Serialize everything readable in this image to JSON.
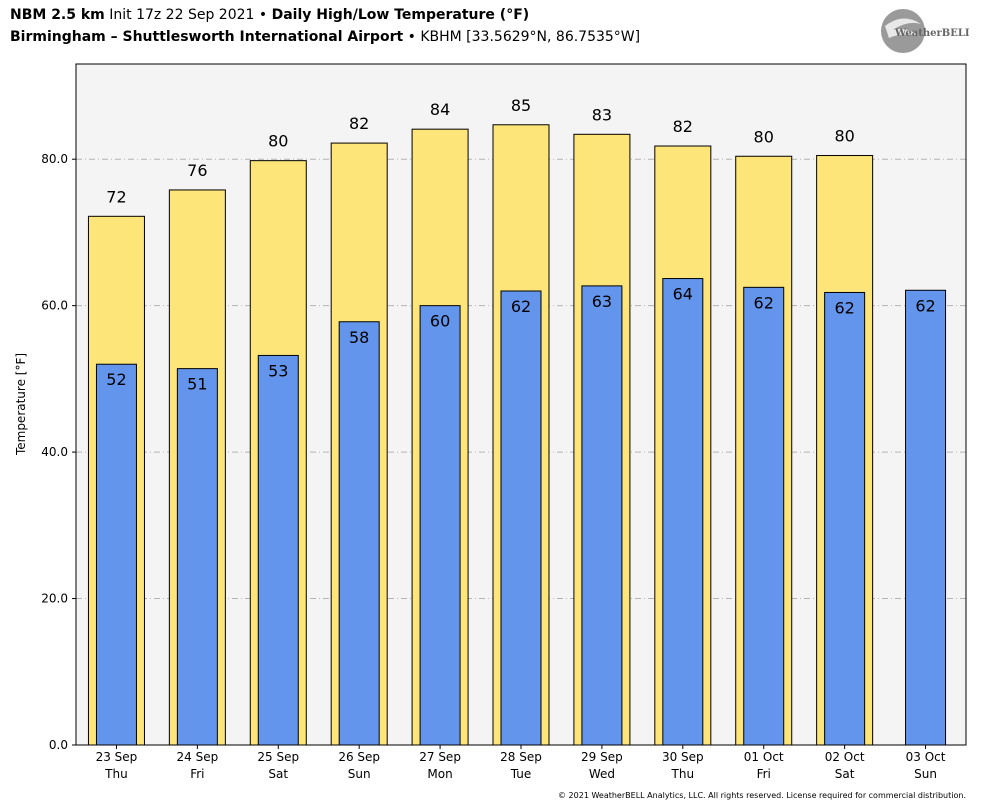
{
  "header": {
    "model": "NBM 2.5 km",
    "init": "Init 17z 22 Sep 2021",
    "bullet": "•",
    "product": "Daily High/Low Temperature (°F)",
    "station": "Birmingham – Shuttlesworth International Airport",
    "station_meta": "KBHM [33.5629°N, 86.7535°W]"
  },
  "logo": {
    "text": "WeatherBELL",
    "icon": "weatherbell-swirl-logo"
  },
  "footer": "© 2021 WeatherBELL Analytics, LLC. All rights reserved. License required for commercial distribution.",
  "colors": {
    "high": "#fee57a",
    "low": "#6495ed",
    "plot_bg": "#f4f4f4",
    "grid": "#b4b4b4"
  },
  "chart_data": {
    "type": "bar",
    "ylabel": "Temperature [°F]",
    "ylim": [
      0,
      93
    ],
    "yticks": [
      0,
      20,
      40,
      60,
      80
    ],
    "ytick_labels": [
      "0.0",
      "20.0",
      "40.0",
      "60.0",
      "80.0"
    ],
    "grid": true,
    "categories": [
      {
        "date": "23 Sep",
        "day": "Thu"
      },
      {
        "date": "24 Sep",
        "day": "Fri"
      },
      {
        "date": "25 Sep",
        "day": "Sat"
      },
      {
        "date": "26 Sep",
        "day": "Sun"
      },
      {
        "date": "27 Sep",
        "day": "Mon"
      },
      {
        "date": "28 Sep",
        "day": "Tue"
      },
      {
        "date": "29 Sep",
        "day": "Wed"
      },
      {
        "date": "30 Sep",
        "day": "Thu"
      },
      {
        "date": "01 Oct",
        "day": "Fri"
      },
      {
        "date": "02 Oct",
        "day": "Sat"
      },
      {
        "date": "03 Oct",
        "day": "Sun"
      }
    ],
    "series": [
      {
        "name": "High",
        "values": [
          72.2,
          75.8,
          79.8,
          82.2,
          84.1,
          84.7,
          83.4,
          81.8,
          80.4,
          80.5,
          null
        ],
        "labels": [
          "72",
          "76",
          "80",
          "82",
          "84",
          "85",
          "83",
          "82",
          "80",
          "80",
          ""
        ]
      },
      {
        "name": "Low",
        "values": [
          52.0,
          51.4,
          53.2,
          57.8,
          60.0,
          62.0,
          62.7,
          63.7,
          62.5,
          61.8,
          62.1
        ],
        "labels": [
          "52",
          "51",
          "53",
          "58",
          "60",
          "62",
          "63",
          "64",
          "62",
          "62",
          "62"
        ]
      }
    ]
  }
}
